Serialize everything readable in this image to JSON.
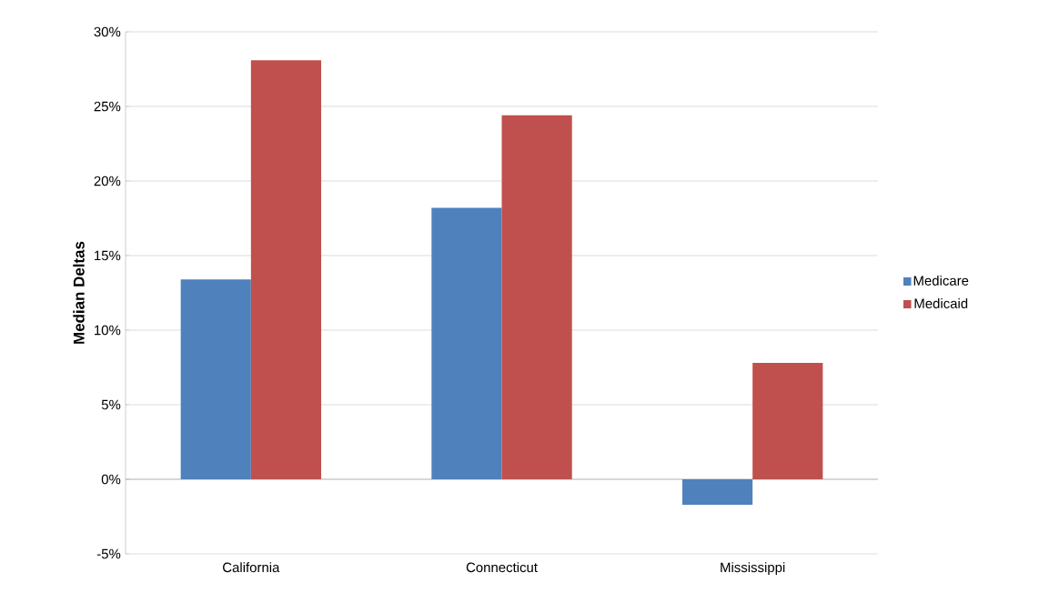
{
  "chart_data": {
    "type": "bar",
    "ylabel": "Median Deltas",
    "categories": [
      "California",
      "Connecticut",
      "Mississippi"
    ],
    "series": [
      {
        "name": "Medicare",
        "color": "#4f81bd",
        "values": [
          13.4,
          18.2,
          -1.7
        ]
      },
      {
        "name": "Medicaid",
        "color": "#c0504d",
        "values": [
          28.1,
          24.4,
          7.8
        ]
      }
    ],
    "ylim": [
      -5,
      30
    ],
    "yticks": [
      {
        "value": -5,
        "label": "-5%"
      },
      {
        "value": 0,
        "label": "0%"
      },
      {
        "value": 5,
        "label": "5%"
      },
      {
        "value": 10,
        "label": "10%"
      },
      {
        "value": 15,
        "label": "15%"
      },
      {
        "value": 20,
        "label": "20%"
      },
      {
        "value": 25,
        "label": "25%"
      },
      {
        "value": 30,
        "label": "30%"
      }
    ],
    "grid": "y",
    "legend": "right"
  }
}
